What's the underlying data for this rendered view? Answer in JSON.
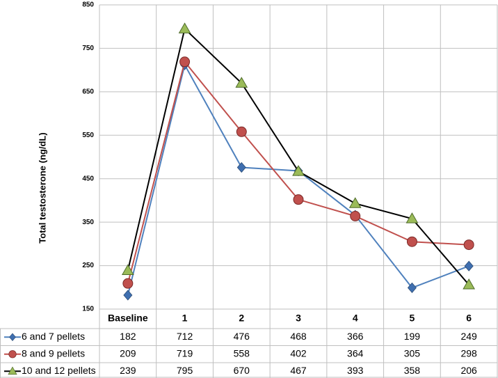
{
  "chart_data": {
    "type": "line",
    "ylabel": "Total testosterone (ng/dL)",
    "categories": [
      "Baseline",
      "1",
      "2",
      "3",
      "4",
      "5",
      "6"
    ],
    "series": [
      {
        "name": "6 and 7 pellets",
        "color": "#4f81bd",
        "marker": "diamond",
        "marker_color": "#3f6fb0",
        "values": [
          182,
          712,
          476,
          468,
          366,
          199,
          249
        ]
      },
      {
        "name": "8 and 9 pellets",
        "color": "#c0504d",
        "marker": "circle",
        "marker_color": "#c0504d",
        "values": [
          209,
          719,
          558,
          402,
          364,
          305,
          298
        ]
      },
      {
        "name": "10 and 12 pellets",
        "color": "#000000",
        "marker": "triangle",
        "marker_color": "#9bbb59",
        "values": [
          239,
          795,
          670,
          467,
          393,
          358,
          206
        ]
      }
    ],
    "ylim": [
      150,
      850
    ],
    "yticks": [
      150,
      250,
      350,
      450,
      550,
      650,
      750,
      850
    ],
    "grid": true,
    "data_table": true
  }
}
